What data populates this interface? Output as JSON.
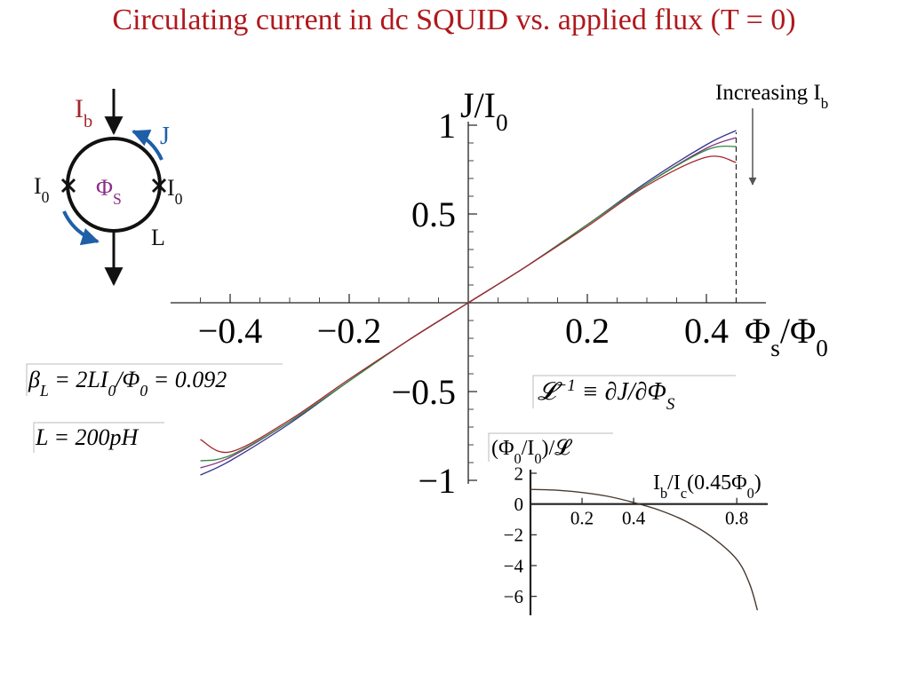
{
  "chart_data": [
    {
      "type": "line",
      "title": "Circulating current in dc SQUID vs. applied flux (T = 0)",
      "x_label": [
        "Φ",
        {
          "sub": "s"
        },
        "/Φ",
        {
          "sub": "0"
        }
      ],
      "y_label": [
        "J/I",
        {
          "sub": "0"
        }
      ],
      "x": [
        -0.45,
        -0.4,
        -0.3,
        -0.2,
        -0.1,
        0,
        0.1,
        0.2,
        0.3,
        0.4,
        0.45
      ],
      "series": [
        {
          "color": "#34348f",
          "values": [
            -0.97,
            -0.89,
            -0.68,
            -0.44,
            -0.21,
            0,
            0.21,
            0.44,
            0.68,
            0.89,
            0.97
          ]
        },
        {
          "color": "#8a2f86",
          "values": [
            -0.93,
            -0.87,
            -0.67,
            -0.44,
            -0.21,
            0,
            0.21,
            0.44,
            0.67,
            0.87,
            0.93
          ]
        },
        {
          "color": "#2f8a3c",
          "values": [
            -0.89,
            -0.86,
            -0.67,
            -0.44,
            -0.21,
            0,
            0.21,
            0.44,
            0.67,
            0.86,
            0.88
          ]
        },
        {
          "color": "#a3262e",
          "values": [
            -0.77,
            -0.84,
            -0.66,
            -0.43,
            -0.21,
            0,
            0.21,
            0.43,
            0.66,
            0.82,
            0.79
          ]
        }
      ],
      "xlim": [
        -0.5,
        0.5
      ],
      "ylim": [
        -1,
        1
      ],
      "xticks": [
        {
          "value": -0.4,
          "label": "−0.4"
        },
        {
          "value": -0.2,
          "label": "−0.2"
        },
        0.2,
        0.4
      ],
      "yticks": [
        {
          "value": -1,
          "label": "−1"
        },
        {
          "value": -0.5,
          "label": "−0.5"
        },
        0.5,
        1
      ],
      "xticks_minor": [
        -0.45,
        -0.35,
        -0.3,
        -0.25,
        -0.15,
        -0.1,
        -0.05,
        0.05,
        0.1,
        0.15,
        0.25,
        0.3,
        0.35
      ],
      "yticks_minor": [
        -0.9,
        -0.8,
        -0.7,
        -0.6,
        -0.4,
        -0.3,
        -0.2,
        -0.1,
        0.1,
        0.2,
        0.3,
        0.4,
        0.6,
        0.7,
        0.8,
        0.9
      ],
      "vline": 0.45,
      "annotations": [
        [
          "Increasing I",
          {
            "sub": "b"
          }
        ],
        [
          "β",
          {
            "sub": "L"
          },
          " = 2LI",
          {
            "sub": "0"
          },
          "/Φ",
          {
            "sub": "0"
          },
          " = 0.092"
        ],
        [
          "L = 200pH"
        ],
        [
          "𝓛",
          {
            "sup": "−1"
          },
          " ≡ ∂J/∂Φ",
          {
            "sub": "S"
          }
        ]
      ]
    },
    {
      "type": "line",
      "x_label": [
        "I",
        {
          "sub": "b"
        },
        "/I",
        {
          "sub": "c"
        },
        "(0.45Φ",
        {
          "sub": "0"
        },
        ")"
      ],
      "y_label": [
        "(Φ",
        {
          "sub": "0"
        },
        "/I",
        {
          "sub": "0"
        },
        ")/𝓛"
      ],
      "x": [
        0,
        0.1,
        0.2,
        0.3,
        0.4,
        0.5,
        0.6,
        0.7,
        0.8,
        0.85,
        0.88
      ],
      "series": [
        {
          "color": "#4a3a30",
          "values": [
            0.95,
            0.9,
            0.75,
            0.5,
            0.1,
            -0.4,
            -1.1,
            -2.1,
            -3.6,
            -5.2,
            -6.9
          ]
        }
      ],
      "xlim": [
        0,
        0.92
      ],
      "ylim": [
        -7,
        2
      ],
      "xticks": [
        0.2,
        0.4,
        0.8
      ],
      "yticks": [
        {
          "value": -6,
          "label": "−6"
        },
        {
          "value": -4,
          "label": "−4"
        },
        {
          "value": -2,
          "label": "−2"
        },
        0,
        2
      ]
    }
  ],
  "diagram": {
    "labels": [
      [
        "I",
        {
          "sub": "b"
        }
      ],
      [
        "J"
      ],
      [
        "I",
        {
          "sub": "0"
        }
      ],
      [
        "Φ",
        {
          "sub": "S"
        }
      ],
      [
        "I",
        {
          "sub": "0"
        }
      ],
      [
        "L"
      ]
    ]
  }
}
